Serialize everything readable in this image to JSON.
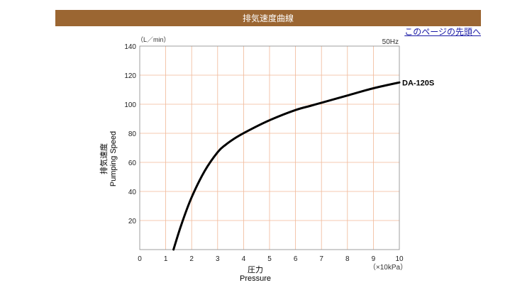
{
  "header": {
    "title": "排気速度曲線"
  },
  "nav": {
    "top_link": "このページの先頭へ"
  },
  "colors": {
    "header_bg": "#9b6632",
    "grid": "#f0b898",
    "curve": "#000000",
    "link": "#1a1aa6"
  },
  "chart_data": {
    "type": "line",
    "title": "",
    "ylabel_jp": "排気速度",
    "ylabel": "Pumping Speed",
    "y_unit": "（L／min）",
    "xlabel_jp": "圧力",
    "xlabel": "Pressure",
    "x_unit": "（×10kPa）",
    "frequency": "50Hz",
    "xlim": [
      0,
      10
    ],
    "ylim": [
      0,
      140
    ],
    "x_ticks": [
      "0",
      "1",
      "2",
      "3",
      "4",
      "5",
      "6",
      "7",
      "8",
      "9",
      "10"
    ],
    "y_ticks": [
      "20",
      "40",
      "60",
      "80",
      "100",
      "120",
      "140"
    ],
    "grid": true,
    "series": [
      {
        "name": "DA-120S",
        "x": [
          1.3,
          1.6,
          2.0,
          2.5,
          3.0,
          3.3,
          3.7,
          4.2,
          5.0,
          6.0,
          6.6,
          7.0,
          8.0,
          9.0,
          10.0
        ],
        "y": [
          0,
          17,
          36,
          54,
          67,
          72,
          77,
          82,
          89,
          96,
          99,
          101,
          106,
          111,
          115
        ]
      }
    ]
  }
}
